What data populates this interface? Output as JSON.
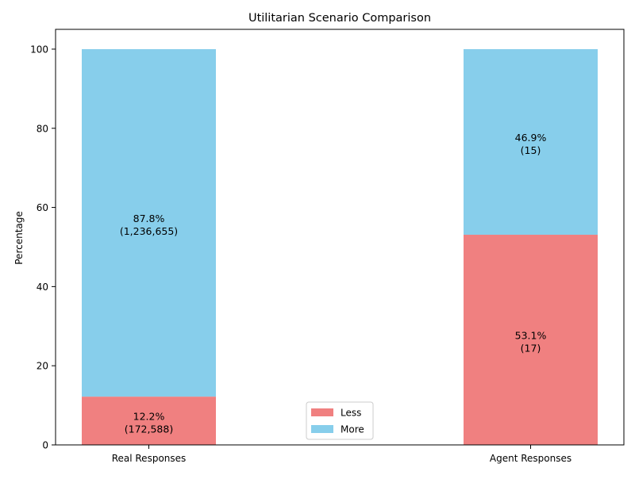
{
  "chart_data": {
    "type": "bar",
    "stacked": true,
    "title": "Utilitarian Scenario Comparison",
    "xlabel": "",
    "ylabel": "Percentage",
    "categories": [
      "Real Responses",
      "Agent Responses"
    ],
    "ylim": [
      0,
      105
    ],
    "yticks": [
      0,
      20,
      40,
      60,
      80,
      100
    ],
    "series": [
      {
        "name": "Less",
        "color": "#F08080",
        "values": [
          12.2,
          53.1
        ],
        "labels": [
          "12.2%\n(172,588)",
          "53.1%\n(17)"
        ]
      },
      {
        "name": "More",
        "color": "#87CEEB",
        "values": [
          87.8,
          46.9
        ],
        "labels": [
          "87.8%\n(1,236,655)",
          "46.9%\n(15)"
        ]
      }
    ],
    "legend": {
      "position": "lower center"
    },
    "grid": false
  }
}
